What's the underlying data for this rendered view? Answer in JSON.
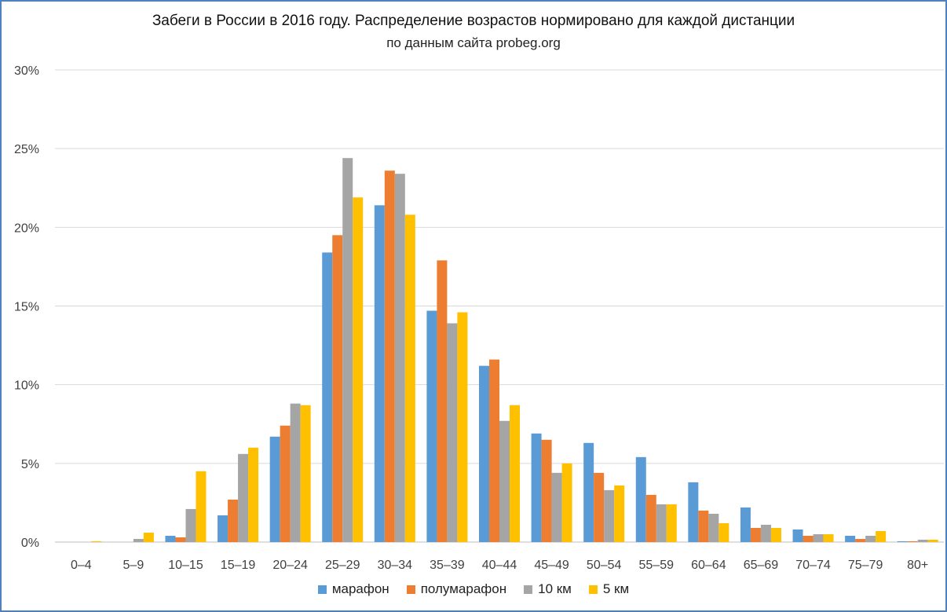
{
  "chart_data": {
    "type": "bar",
    "title": "Забеги в России в 2016 году. Распределение возрастов нормировано для каждой дистанции",
    "subtitle": "по данным сайта probeg.org",
    "xlabel": "",
    "ylabel": "",
    "ylim": [
      0,
      30
    ],
    "yticks": [
      "0%",
      "5%",
      "10%",
      "15%",
      "20%",
      "25%",
      "30%"
    ],
    "ytick_values": [
      0,
      5,
      10,
      15,
      20,
      25,
      30
    ],
    "grid": true,
    "legend_position": "bottom",
    "categories": [
      "0–4",
      "5–9",
      "10–15",
      "15–19",
      "20–24",
      "25–29",
      "30–34",
      "35–39",
      "40–44",
      "45–49",
      "50–54",
      "55–59",
      "60–64",
      "65–69",
      "70–74",
      "75–79",
      "80+"
    ],
    "series": [
      {
        "name": "марафон",
        "color": "#5b9bd5",
        "values": [
          0,
          0,
          0.4,
          1.7,
          6.7,
          18.4,
          21.4,
          14.7,
          11.2,
          6.9,
          6.3,
          5.4,
          3.8,
          2.2,
          0.8,
          0.4,
          0.05
        ]
      },
      {
        "name": "полумарафон",
        "color": "#ed7d31",
        "values": [
          0,
          0,
          0.3,
          2.7,
          7.4,
          19.5,
          23.6,
          17.9,
          11.6,
          6.5,
          4.4,
          3.0,
          2.0,
          0.9,
          0.4,
          0.2,
          0.05
        ]
      },
      {
        "name": "10 км",
        "color": "#a5a5a5",
        "values": [
          0,
          0.2,
          2.1,
          5.6,
          8.8,
          24.4,
          23.4,
          13.9,
          7.7,
          4.4,
          3.3,
          2.4,
          1.8,
          1.1,
          0.5,
          0.4,
          0.15
        ]
      },
      {
        "name": "5 км",
        "color": "#ffc000",
        "values": [
          0.05,
          0.6,
          4.5,
          6.0,
          8.7,
          21.9,
          20.8,
          14.6,
          8.7,
          5.0,
          3.6,
          2.4,
          1.2,
          0.9,
          0.5,
          0.7,
          0.15
        ]
      }
    ]
  }
}
